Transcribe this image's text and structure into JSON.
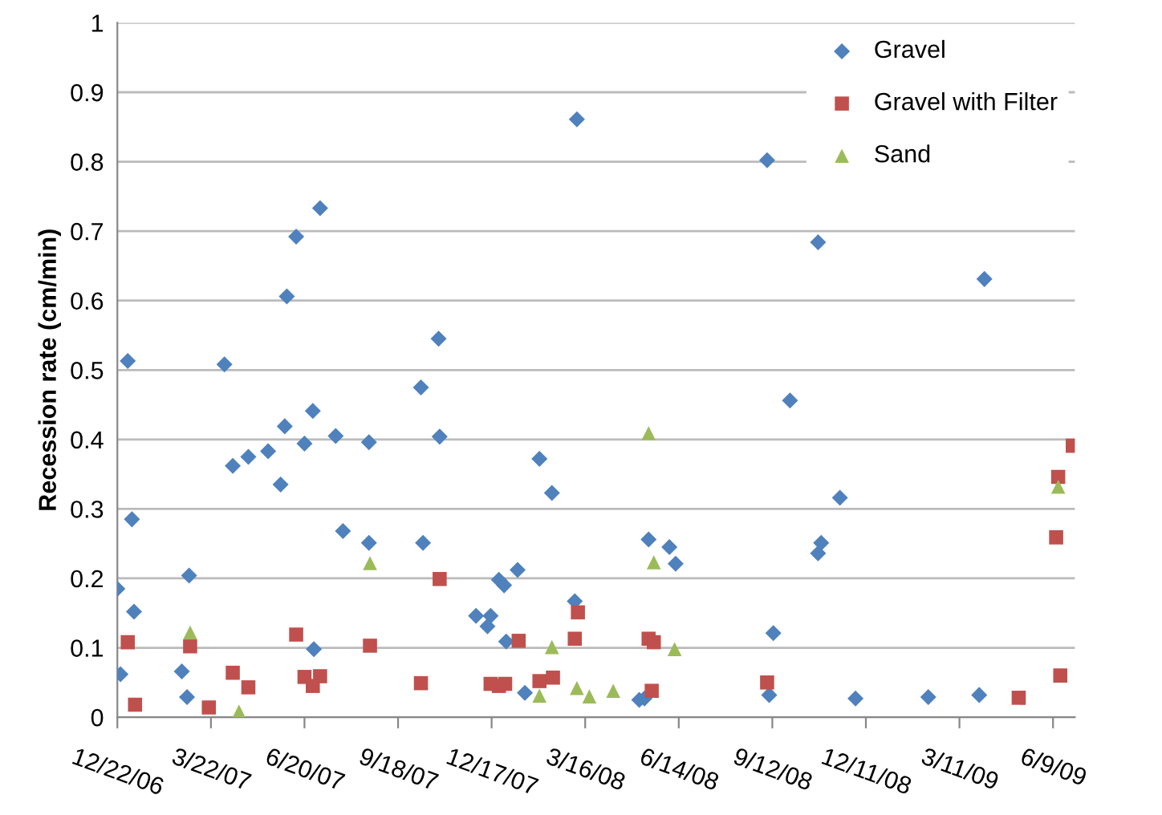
{
  "chart_data": {
    "type": "scatter",
    "ylabel": "Recession rate (cm/min)",
    "xlim": [
      "2006-12-22",
      "2009-06-30"
    ],
    "xticks": [
      {
        "value": "2006-12-22",
        "label": "12/22/06"
      },
      {
        "value": "2007-03-22",
        "label": "3/22/07"
      },
      {
        "value": "2007-06-20",
        "label": "6/20/07"
      },
      {
        "value": "2007-09-18",
        "label": "9/18/07"
      },
      {
        "value": "2007-12-17",
        "label": "12/17/07"
      },
      {
        "value": "2008-03-16",
        "label": "3/16/08"
      },
      {
        "value": "2008-06-14",
        "label": "6/14/08"
      },
      {
        "value": "2008-09-12",
        "label": "9/12/08"
      },
      {
        "value": "2008-12-11",
        "label": "12/11/08"
      },
      {
        "value": "2009-03-11",
        "label": "3/11/09"
      },
      {
        "value": "2009-06-09",
        "label": "6/9/09"
      }
    ],
    "ylim": [
      0,
      1
    ],
    "yticks": [
      0,
      0.1,
      0.2,
      0.3,
      0.4,
      0.5,
      0.6,
      0.7,
      0.8,
      0.9,
      1
    ],
    "grid": "y",
    "legend": "top right",
    "series": [
      {
        "name": "Gravel",
        "color": "#4f81bd",
        "marker": "diamond",
        "x": [
          "2006-12-22",
          "2006-12-25",
          "2007-01-01",
          "2007-01-05",
          "2007-01-07",
          "2007-02-22",
          "2007-02-27",
          "2007-03-01",
          "2007-04-04",
          "2007-04-12",
          "2007-04-27",
          "2007-05-16",
          "2007-05-28",
          "2007-06-01",
          "2007-06-03",
          "2007-06-12",
          "2007-06-20",
          "2007-06-28",
          "2007-06-29",
          "2007-07-05",
          "2007-07-20",
          "2007-07-27",
          "2007-08-21",
          "2007-08-21",
          "2007-10-10",
          "2007-10-12",
          "2007-10-27",
          "2007-10-28",
          "2007-12-02",
          "2007-12-13",
          "2007-12-16",
          "2007-12-24",
          "2007-12-29",
          "2007-12-31",
          "2008-01-11",
          "2008-01-18",
          "2008-02-01",
          "2008-02-13",
          "2008-03-06",
          "2008-03-08",
          "2008-05-07",
          "2008-05-12",
          "2008-05-16",
          "2008-05-17",
          "2008-06-05",
          "2008-06-11",
          "2008-09-07",
          "2008-09-09",
          "2008-09-13",
          "2008-09-29",
          "2008-10-26",
          "2008-10-26",
          "2008-10-29",
          "2008-11-16",
          "2008-12-01",
          "2009-02-09",
          "2009-03-30",
          "2009-04-04"
        ],
        "values": [
          0.185,
          0.062,
          0.513,
          0.285,
          0.152,
          0.066,
          0.029,
          0.204,
          0.508,
          0.362,
          0.375,
          0.383,
          0.335,
          0.419,
          0.606,
          0.692,
          0.394,
          0.441,
          0.098,
          0.733,
          0.405,
          0.268,
          0.396,
          0.251,
          0.475,
          0.251,
          0.545,
          0.404,
          0.146,
          0.131,
          0.146,
          0.198,
          0.19,
          0.109,
          0.212,
          0.035,
          0.372,
          0.323,
          0.167,
          0.861,
          0.025,
          0.027,
          0.256,
          null,
          0.245,
          0.221,
          0.802,
          0.032,
          0.121,
          0.456,
          0.684,
          0.236,
          0.251,
          0.316,
          0.027,
          0.029,
          0.032,
          0.631
        ]
      },
      {
        "name": "Gravel with Filter",
        "color": "#c0504d",
        "marker": "square",
        "x": [
          "2007-01-01",
          "2007-01-08",
          "2007-03-02",
          "2007-03-20",
          "2007-04-12",
          "2007-04-27",
          "2007-06-12",
          "2007-06-20",
          "2007-06-28",
          "2007-07-05",
          "2007-08-22",
          "2007-10-10",
          "2007-10-28",
          "2007-12-16",
          "2007-12-24",
          "2007-12-30",
          "2008-01-12",
          "2008-02-01",
          "2008-02-14",
          "2008-03-06",
          "2008-03-09",
          "2008-05-16",
          "2008-05-19",
          "2008-05-21",
          "2008-09-07",
          "2009-05-07",
          "2009-06-12",
          "2009-06-14",
          "2009-06-16",
          "2009-06-28"
        ],
        "values": [
          0.108,
          0.018,
          0.102,
          0.014,
          0.064,
          0.043,
          0.119,
          0.058,
          0.045,
          0.059,
          0.103,
          0.049,
          0.199,
          0.048,
          0.045,
          0.048,
          0.11,
          0.052,
          0.057,
          0.113,
          0.151,
          0.113,
          0.038,
          0.108,
          0.05,
          0.028,
          0.259,
          0.346,
          0.06,
          0.391
        ]
      },
      {
        "name": "Sand",
        "color": "#9bbb59",
        "marker": "triangle",
        "x": [
          "2007-03-02",
          "2007-04-18",
          "2007-08-22",
          "2008-02-01",
          "2008-02-13",
          "2008-03-08",
          "2008-03-20",
          "2008-04-12",
          "2008-05-16",
          "2008-05-21",
          "2008-06-10",
          "2009-06-14"
        ],
        "values": [
          0.122,
          0.008,
          0.222,
          0.031,
          0.101,
          0.042,
          0.03,
          0.038,
          0.409,
          0.223,
          0.098,
          0.332
        ]
      }
    ]
  }
}
